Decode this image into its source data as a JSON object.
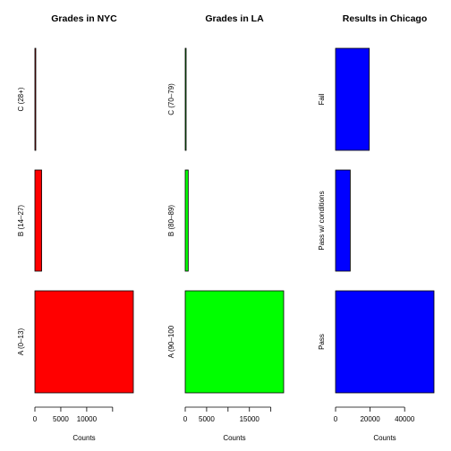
{
  "chart_data": [
    {
      "type": "bar",
      "orientation": "horizontal",
      "title": "Grades in NYC",
      "xlabel": "Counts",
      "ylabel": "",
      "categories": [
        "A (0–13)",
        "B (14–27)",
        "C (28+)"
      ],
      "values": [
        19000,
        1300,
        80
      ],
      "xlim": [
        0,
        19000
      ],
      "xticks": [
        0,
        5000,
        10000,
        15000
      ],
      "xtick_labels": [
        "0",
        "5000",
        "10000",
        ""
      ],
      "color": "#ff0000"
    },
    {
      "type": "bar",
      "orientation": "horizontal",
      "title": "Grades in LA",
      "xlabel": "Counts",
      "ylabel": "",
      "categories": [
        "A (90–100",
        "B (80–89)",
        "C (70–79)"
      ],
      "values": [
        23000,
        700,
        120
      ],
      "xlim": [
        0,
        23000
      ],
      "xticks": [
        0,
        5000,
        10000,
        15000,
        20000
      ],
      "xtick_labels": [
        "0",
        "5000",
        "",
        "15000",
        ""
      ],
      "color": "#00ff00"
    },
    {
      "type": "bar",
      "orientation": "horizontal",
      "title": "Results in Chicago",
      "xlabel": "Counts",
      "ylabel": "",
      "categories": [
        "Pass",
        "Pass w/ conditions",
        "Fail"
      ],
      "values": [
        57000,
        8500,
        19500
      ],
      "xlim": [
        0,
        57000
      ],
      "xticks": [
        0,
        20000,
        40000
      ],
      "xtick_labels": [
        "0",
        "20000",
        "40000"
      ],
      "color": "#0000ff"
    }
  ]
}
